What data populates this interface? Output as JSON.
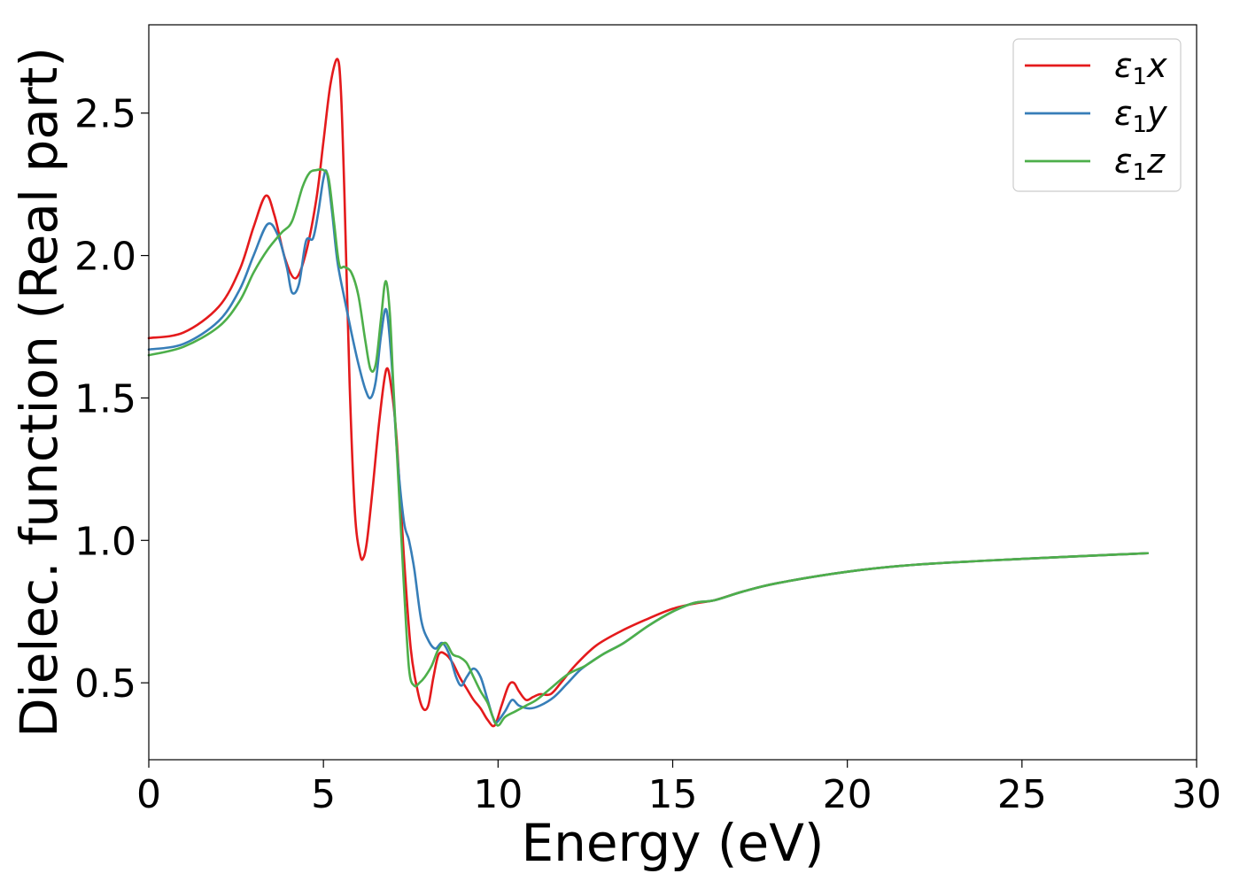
{
  "chart_data": {
    "type": "line",
    "title": "",
    "xlabel": "Energy (eV)",
    "ylabel": "Dielec. function (Real part)",
    "xlim": [
      0,
      30
    ],
    "ylim": [
      0.23,
      2.81
    ],
    "xticks": [
      0,
      5,
      10,
      15,
      20,
      25,
      30
    ],
    "xtick_labels": [
      "0",
      "5",
      "10",
      "15",
      "20",
      "25",
      "30"
    ],
    "yticks": [
      0.5,
      1.0,
      1.5,
      2.0,
      2.5
    ],
    "ytick_labels": [
      "0.5",
      "1.0",
      "1.5",
      "2.0",
      "2.5"
    ],
    "grid": false,
    "legend_position": "top-right",
    "series": [
      {
        "name": "ε1x",
        "name_base": "ε",
        "name_sub": "1",
        "name_var": "x",
        "color": "#e41a1c",
        "x": [
          0,
          1,
          2,
          2.6,
          3.0,
          3.35,
          3.6,
          3.9,
          4.2,
          4.5,
          4.8,
          5.0,
          5.2,
          5.4,
          5.5,
          5.6,
          5.75,
          5.9,
          6.05,
          6.15,
          6.25,
          6.4,
          6.6,
          6.8,
          6.95,
          7.1,
          7.3,
          7.5,
          7.7,
          7.85,
          8.0,
          8.15,
          8.3,
          8.5,
          8.7,
          8.9,
          9.1,
          9.3,
          9.5,
          9.7,
          9.9,
          10.1,
          10.3,
          10.45,
          10.6,
          10.8,
          11.0,
          11.2,
          11.5,
          11.8,
          12.2,
          12.8,
          13.5,
          14.2,
          15.0,
          15.7,
          16.2,
          17,
          18,
          20,
          22,
          25,
          28.6
        ],
        "y": [
          1.71,
          1.73,
          1.82,
          1.95,
          2.1,
          2.21,
          2.14,
          1.99,
          1.92,
          2.01,
          2.2,
          2.4,
          2.6,
          2.69,
          2.58,
          2.22,
          1.55,
          1.1,
          0.95,
          0.94,
          1.0,
          1.17,
          1.42,
          1.6,
          1.53,
          1.35,
          0.95,
          0.62,
          0.47,
          0.41,
          0.42,
          0.52,
          0.6,
          0.6,
          0.57,
          0.52,
          0.48,
          0.44,
          0.41,
          0.37,
          0.35,
          0.42,
          0.49,
          0.5,
          0.47,
          0.44,
          0.45,
          0.46,
          0.46,
          0.5,
          0.56,
          0.63,
          0.68,
          0.72,
          0.76,
          0.78,
          0.79,
          0.82,
          0.85,
          0.89,
          0.915,
          0.935,
          0.955
        ]
      },
      {
        "name": "ε1y",
        "name_base": "ε",
        "name_sub": "1",
        "name_var": "y",
        "color": "#377eb8",
        "x": [
          0,
          1,
          2,
          2.6,
          3.0,
          3.4,
          3.7,
          3.95,
          4.1,
          4.3,
          4.5,
          4.7,
          4.85,
          5.0,
          5.1,
          5.25,
          5.4,
          5.6,
          5.8,
          6.0,
          6.2,
          6.35,
          6.5,
          6.65,
          6.8,
          6.95,
          7.1,
          7.3,
          7.45,
          7.6,
          7.8,
          8.0,
          8.2,
          8.4,
          8.6,
          8.8,
          8.95,
          9.1,
          9.3,
          9.5,
          9.7,
          9.85,
          9.95,
          10.2,
          10.4,
          10.6,
          10.9,
          11.2,
          11.6,
          12.0,
          12.4,
          13.0,
          13.6,
          14.3,
          15.0,
          15.6,
          16.2,
          17,
          18,
          20,
          22,
          25,
          28.6
        ],
        "y": [
          1.67,
          1.69,
          1.77,
          1.88,
          2.0,
          2.11,
          2.07,
          1.96,
          1.87,
          1.9,
          2.05,
          2.06,
          2.15,
          2.27,
          2.29,
          2.15,
          1.98,
          1.85,
          1.73,
          1.62,
          1.53,
          1.5,
          1.56,
          1.72,
          1.81,
          1.63,
          1.32,
          1.07,
          1.0,
          0.9,
          0.72,
          0.65,
          0.62,
          0.64,
          0.6,
          0.52,
          0.49,
          0.52,
          0.55,
          0.52,
          0.44,
          0.38,
          0.36,
          0.4,
          0.44,
          0.42,
          0.41,
          0.42,
          0.45,
          0.5,
          0.55,
          0.6,
          0.64,
          0.7,
          0.75,
          0.78,
          0.79,
          0.82,
          0.85,
          0.89,
          0.915,
          0.935,
          0.955
        ]
      },
      {
        "name": "ε1z",
        "name_base": "ε",
        "name_sub": "1",
        "name_var": "z",
        "color": "#4daf4a",
        "x": [
          0,
          1,
          2,
          2.6,
          3.0,
          3.4,
          3.8,
          4.1,
          4.4,
          4.6,
          4.8,
          5.0,
          5.15,
          5.3,
          5.45,
          5.6,
          5.8,
          6.0,
          6.2,
          6.35,
          6.5,
          6.65,
          6.78,
          6.9,
          7.0,
          7.15,
          7.3,
          7.45,
          7.6,
          7.75,
          7.9,
          8.1,
          8.3,
          8.5,
          8.7,
          8.9,
          9.1,
          9.3,
          9.5,
          9.7,
          9.85,
          10.0,
          10.2,
          10.5,
          10.8,
          11.1,
          11.5,
          12.0,
          12.5,
          13.0,
          13.6,
          14.3,
          15.0,
          15.6,
          16.2,
          17,
          18,
          20,
          22,
          25,
          28.6
        ],
        "y": [
          1.65,
          1.68,
          1.75,
          1.84,
          1.94,
          2.02,
          2.08,
          2.12,
          2.24,
          2.29,
          2.3,
          2.3,
          2.27,
          2.12,
          1.97,
          1.96,
          1.94,
          1.86,
          1.7,
          1.6,
          1.62,
          1.78,
          1.91,
          1.8,
          1.55,
          1.2,
          0.85,
          0.55,
          0.49,
          0.5,
          0.52,
          0.56,
          0.62,
          0.64,
          0.6,
          0.59,
          0.57,
          0.52,
          0.47,
          0.43,
          0.38,
          0.35,
          0.38,
          0.4,
          0.42,
          0.44,
          0.48,
          0.53,
          0.56,
          0.6,
          0.64,
          0.7,
          0.75,
          0.78,
          0.79,
          0.82,
          0.85,
          0.89,
          0.915,
          0.935,
          0.955
        ]
      }
    ]
  }
}
